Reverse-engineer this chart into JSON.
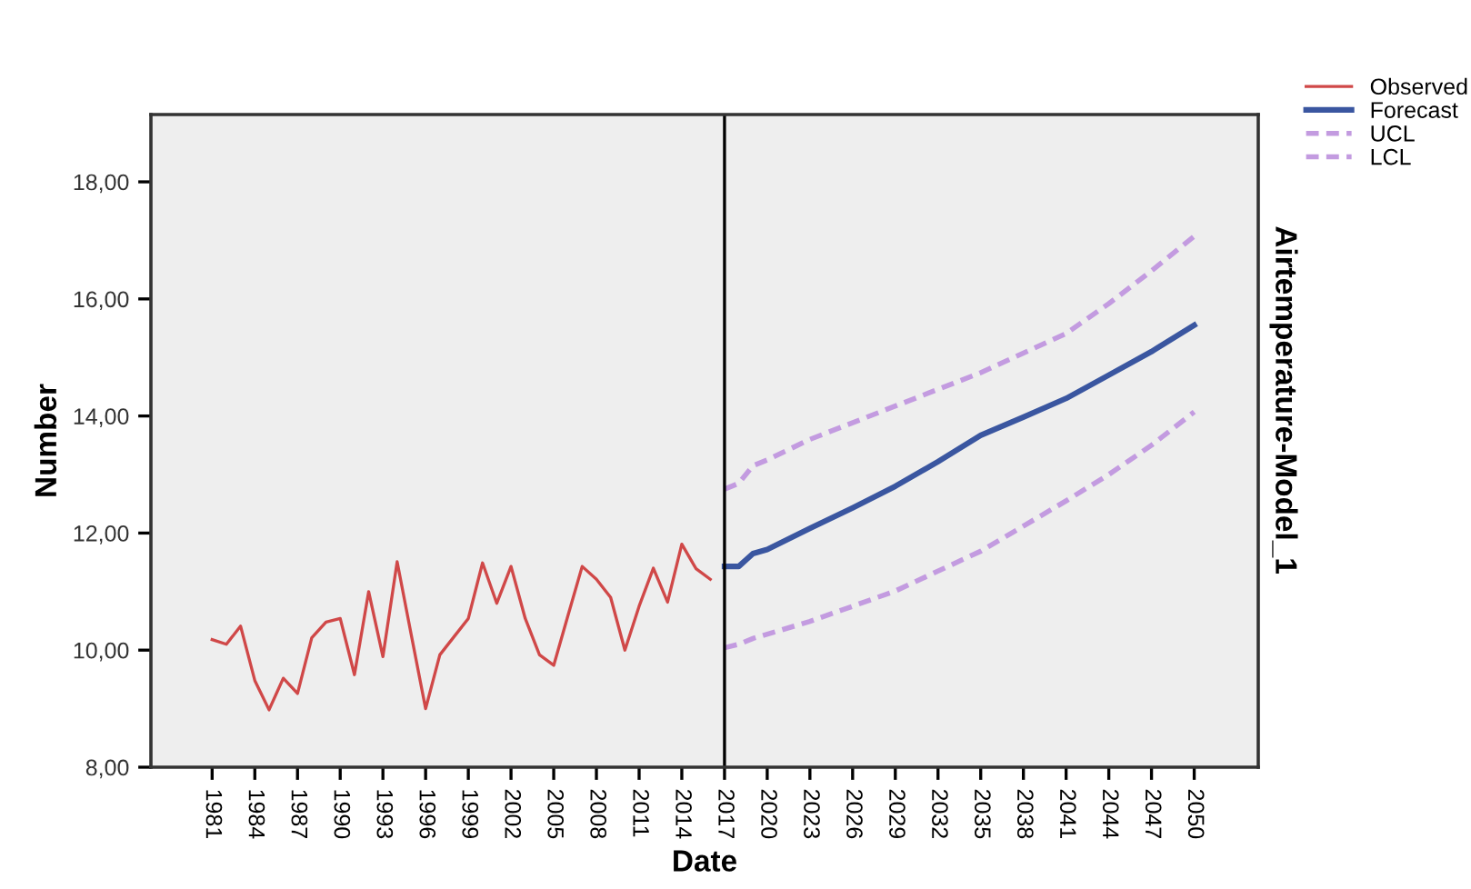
{
  "chart_data": {
    "type": "line",
    "title": "Airtemperature-Model_1",
    "xlabel": "Date",
    "ylabel": "Number",
    "xlim": [
      1976.7,
      2054.5
    ],
    "ylim": [
      8,
      19.15
    ],
    "xticks": [
      1981,
      1984,
      1987,
      1990,
      1993,
      1996,
      1999,
      2002,
      2005,
      2008,
      2011,
      2014,
      2017,
      2020,
      2023,
      2026,
      2029,
      2032,
      2035,
      2038,
      2041,
      2044,
      2047,
      2050
    ],
    "yticks": [
      {
        "value": 8,
        "label": "8,00"
      },
      {
        "value": 10,
        "label": "10,00"
      },
      {
        "value": 12,
        "label": "12,00"
      },
      {
        "value": 14,
        "label": "14,00"
      },
      {
        "value": 16,
        "label": "16,00"
      },
      {
        "value": 18,
        "label": "18,00"
      }
    ],
    "grid": false,
    "legend": "top right",
    "marker": "none",
    "ref_lines": [
      {
        "axis": "x",
        "value": 2017,
        "color": "#000000"
      }
    ],
    "series": [
      {
        "name": "Observed",
        "color": "#d04848",
        "line_style": "solid",
        "x": [
          1981,
          1982,
          1983,
          1984,
          1985,
          1986,
          1987,
          1988,
          1989,
          1990,
          1991,
          1992,
          1993,
          1994,
          1995,
          1996,
          1997,
          1998,
          1999,
          2000,
          2001,
          2002,
          2003,
          2004,
          2005,
          2006,
          2007,
          2008,
          2009,
          2010,
          2011,
          2012,
          2013,
          2014,
          2015,
          2016
        ],
        "values": [
          10.18,
          10.1,
          10.41,
          9.48,
          8.98,
          9.52,
          9.26,
          10.21,
          10.48,
          10.54,
          9.58,
          11.0,
          9.89,
          11.51,
          10.25,
          9.0,
          9.92,
          10.23,
          10.54,
          11.49,
          10.8,
          11.43,
          10.54,
          9.92,
          9.74,
          10.59,
          11.43,
          11.21,
          10.9,
          10.0,
          10.75,
          11.4,
          10.82,
          11.81,
          11.39,
          11.21
        ]
      },
      {
        "name": "Forecast",
        "color": "#3a56a0",
        "line_style": "solid",
        "x": [
          2017,
          2018,
          2019,
          2020,
          2023,
          2026,
          2029,
          2032,
          2035,
          2038,
          2041,
          2044,
          2047,
          2050
        ],
        "values": [
          11.43,
          11.43,
          11.65,
          11.72,
          12.08,
          12.43,
          12.8,
          13.22,
          13.67,
          13.98,
          14.3,
          14.7,
          15.1,
          15.55
        ]
      },
      {
        "name": "UCL",
        "color": "#c39be0",
        "line_style": "dashed",
        "x": [
          2017,
          2018,
          2019,
          2020,
          2023,
          2029,
          2035,
          2041,
          2044,
          2047,
          2050
        ],
        "values": [
          12.75,
          12.85,
          13.15,
          13.25,
          13.6,
          14.17,
          14.74,
          15.41,
          15.92,
          16.48,
          17.07
        ]
      },
      {
        "name": "LCL",
        "color": "#c39be0",
        "line_style": "dashed",
        "x": [
          2017,
          2018,
          2019,
          2023,
          2029,
          2035,
          2041,
          2044,
          2047,
          2050
        ],
        "values": [
          10.04,
          10.1,
          10.2,
          10.49,
          11.01,
          11.69,
          12.55,
          13.0,
          13.5,
          14.07
        ]
      }
    ]
  }
}
